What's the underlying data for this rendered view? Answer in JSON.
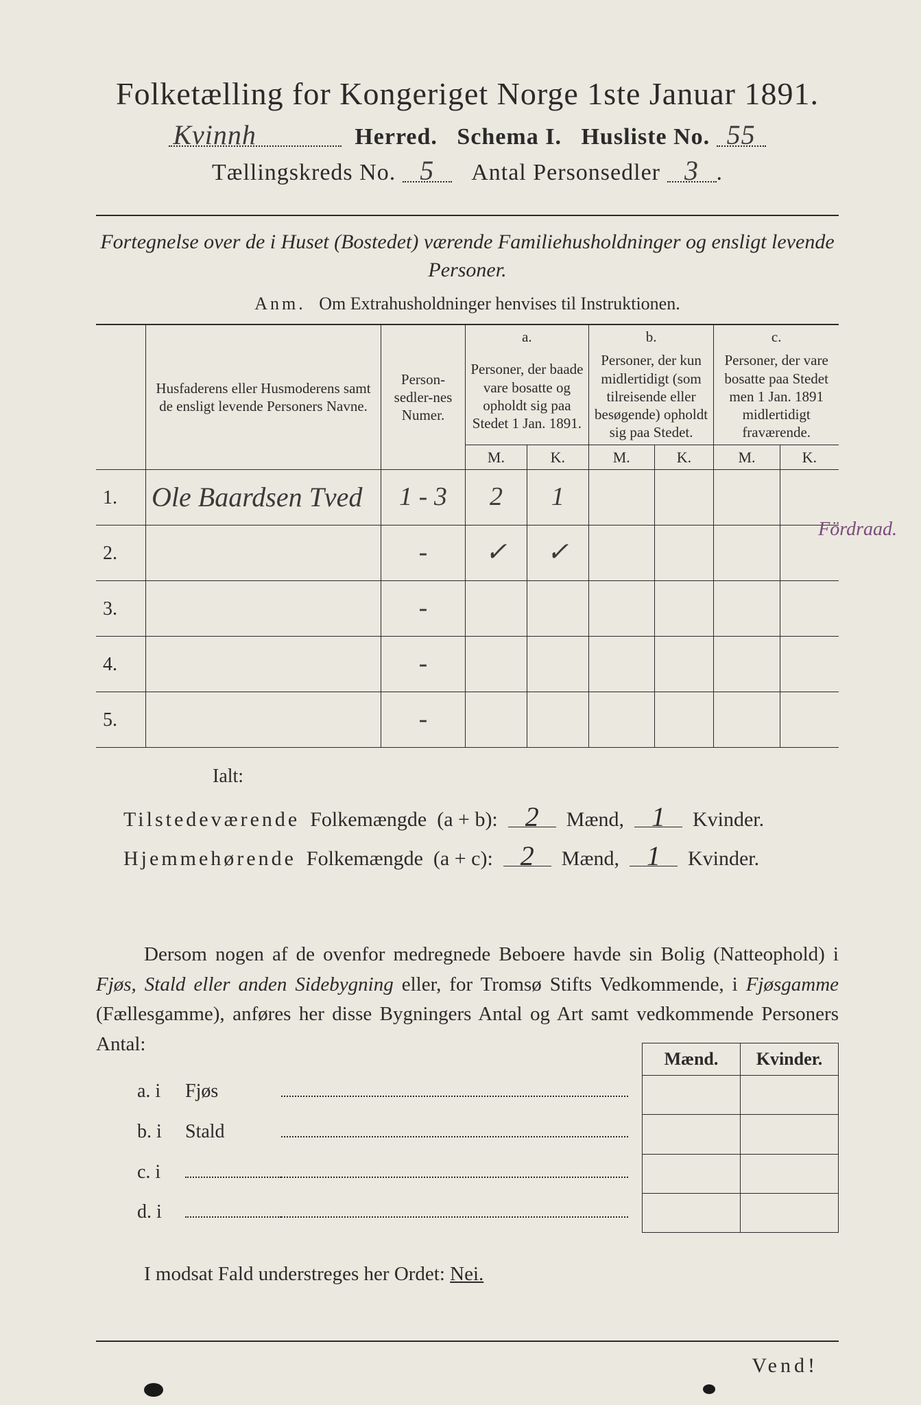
{
  "title": "Folketælling for Kongeriget Norge 1ste Januar 1891.",
  "herred_value": "Kvinnh",
  "herred_label": "Herred.",
  "schema_label": "Schema I.",
  "husliste_label": "Husliste No.",
  "husliste_value": "55",
  "kreds_label": "Tællingskreds No.",
  "kreds_value": "5",
  "antal_label": "Antal Personsedler",
  "antal_value": "3",
  "subtitle": "Fortegnelse over de i Huset (Bostedet) værende Familiehusholdninger og ensligt levende Personer.",
  "anm_label": "Anm.",
  "anm_text": "Om Extrahusholdninger henvises til Instruktionen.",
  "table": {
    "col1": "Husfaderens eller Husmoderens samt de ensligt levende Personers Navne.",
    "col2": "Person-sedler-nes Numer.",
    "col_a_top": "a.",
    "col_a": "Personer, der baade vare bosatte og opholdt sig paa Stedet 1 Jan. 1891.",
    "col_b_top": "b.",
    "col_b": "Personer, der kun midlertidigt (som tilreisende eller besøgende) opholdt sig paa Stedet.",
    "col_c_top": "c.",
    "col_c": "Personer, der vare bosatte paa Stedet men 1 Jan. 1891 midlertidigt fraværende.",
    "M": "M.",
    "K": "K.",
    "rows": [
      {
        "n": "1.",
        "name": "Ole Baardsen Tved",
        "num": "1 - 3",
        "aM": "2",
        "aK": "1",
        "bM": "",
        "bK": "",
        "cM": "",
        "cK": ""
      },
      {
        "n": "2.",
        "name": "",
        "num": "-",
        "aM": "✓",
        "aK": "✓",
        "bM": "",
        "bK": "",
        "cM": "",
        "cK": ""
      },
      {
        "n": "3.",
        "name": "",
        "num": "-",
        "aM": "",
        "aK": "",
        "bM": "",
        "bK": "",
        "cM": "",
        "cK": ""
      },
      {
        "n": "4.",
        "name": "",
        "num": "-",
        "aM": "",
        "aK": "",
        "bM": "",
        "bK": "",
        "cM": "",
        "cK": ""
      },
      {
        "n": "5.",
        "name": "",
        "num": "-",
        "aM": "",
        "aK": "",
        "bM": "",
        "bK": "",
        "cM": "",
        "cK": ""
      }
    ]
  },
  "margin_note": "Fördraad.",
  "ialt": "Ialt:",
  "totals": {
    "t_label": "Tilstedeværende",
    "h_label": "Hjemmehørende",
    "folkem": "Folkemængde",
    "ab": "(a + b):",
    "ac": "(a + c):",
    "t_m": "2",
    "t_k": "1",
    "h_m": "2",
    "h_k": "1",
    "maend": "Mænd,",
    "kvinder": "Kvinder."
  },
  "para": {
    "p1": "Dersom nogen af de ovenfor medregnede Beboere havde sin Bolig (Natteophold) i ",
    "p2": "Fjøs, Stald eller anden Sidebygning",
    "p3": " eller, for Tromsø Stifts Vedkommende, i ",
    "p4": "Fjøsgamme",
    "p5": " (Fællesgamme), anføres her disse Bygningers Antal og ",
    "p6": "Art",
    "p7": " samt vedkommende Personers Antal:"
  },
  "mk": {
    "maend": "Mænd.",
    "kvinder": "Kvinder."
  },
  "blines": {
    "a": "a.  i",
    "a2": "Fjøs",
    "b": "b.  i",
    "b2": "Stald",
    "c": "c.  i",
    "c2": "",
    "d": "d.  i",
    "d2": ""
  },
  "nei_text": "I modsat Fald understreges her Ordet: ",
  "nei_word": "Nei.",
  "vend": "Vend!"
}
